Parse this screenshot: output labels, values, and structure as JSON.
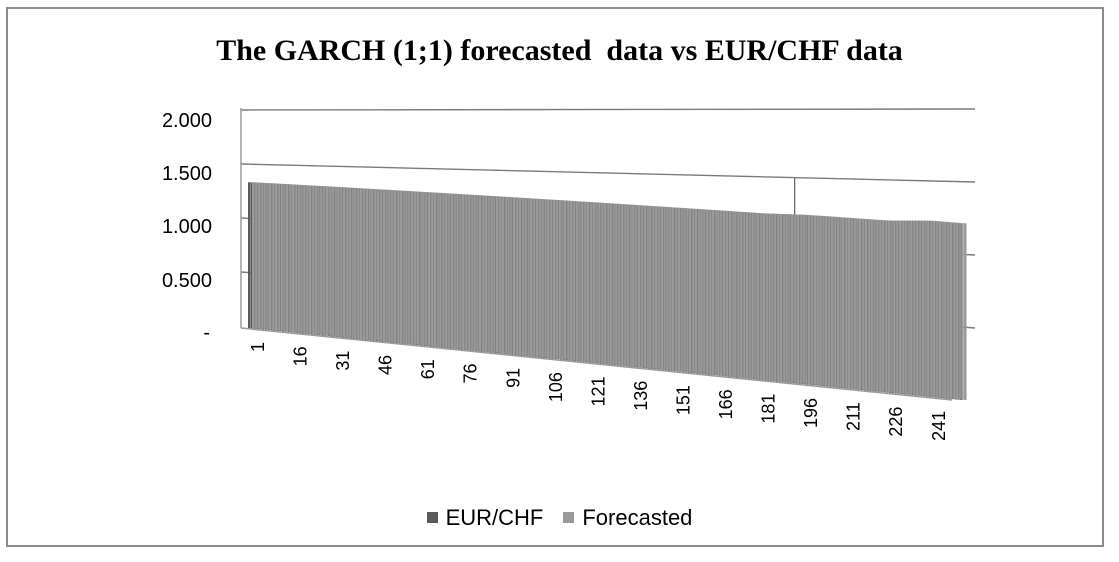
{
  "chart_data": {
    "type": "bar",
    "title": "The GARCH (1;1) forecasted  data vs EUR/CHF data",
    "xlabel": "",
    "ylabel": "",
    "ylim": [
      0,
      2
    ],
    "y_ticks": [
      "-",
      "0.500",
      "1.000",
      "1.500",
      "2.000"
    ],
    "y_tick_values": [
      0,
      0.5,
      1.0,
      1.5,
      2.0
    ],
    "x_tick_labels": [
      "1",
      "16",
      "31",
      "46",
      "61",
      "76",
      "91",
      "106",
      "121",
      "136",
      "151",
      "166",
      "181",
      "196",
      "211",
      "226",
      "241"
    ],
    "x_range": [
      1,
      252
    ],
    "grid": true,
    "legend_position": "bottom",
    "series": [
      {
        "name": "EUR/CHF",
        "color": "#5a5a5a",
        "x": [
          1,
          16,
          31,
          46,
          61,
          76,
          91,
          106,
          121,
          136,
          151,
          166,
          181,
          196,
          211,
          226,
          241,
          252
        ],
        "values": [
          1.35,
          1.34,
          1.33,
          1.32,
          1.31,
          1.3,
          1.29,
          1.28,
          1.27,
          1.26,
          1.25,
          1.24,
          1.23,
          1.23,
          1.22,
          1.21,
          1.22,
          1.21
        ],
        "spikes": [
          {
            "x": 193,
            "value": 1.5
          }
        ]
      },
      {
        "name": "Forecasted",
        "color": "#9a9a9a",
        "x": [
          1,
          16,
          31,
          46,
          61,
          76,
          91,
          106,
          121,
          136,
          151,
          166,
          181,
          196,
          211,
          226,
          241,
          252
        ],
        "values": [
          1.35,
          1.34,
          1.33,
          1.32,
          1.31,
          1.3,
          1.29,
          1.28,
          1.27,
          1.26,
          1.25,
          1.24,
          1.23,
          1.23,
          1.22,
          1.21,
          1.22,
          1.21
        ]
      }
    ]
  }
}
